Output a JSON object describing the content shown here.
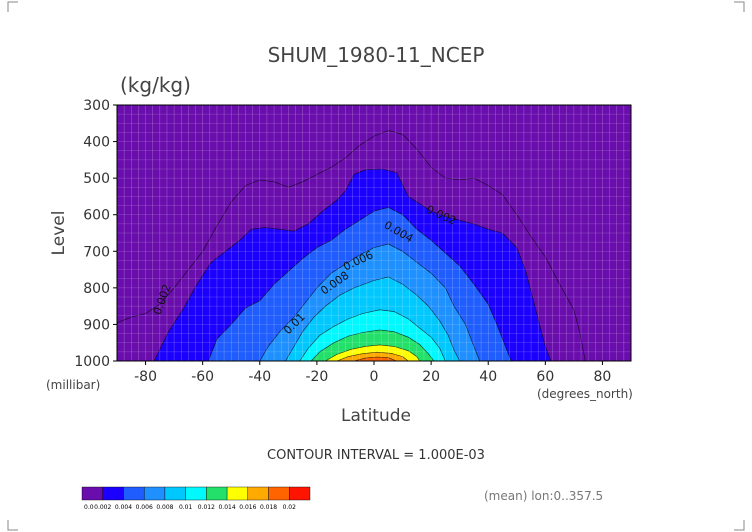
{
  "chart_data": {
    "type": "contour",
    "title": "SHUM_1980-11_NCEP",
    "units": "(kg/kg)",
    "xlabel": "Latitude",
    "ylabel": "Level",
    "x_unit_label": "(degrees_north)",
    "y_unit_label": "(millibar)",
    "xlim": [
      -90,
      90
    ],
    "ylim": [
      1000,
      300
    ],
    "x_ticks": [
      -80,
      -60,
      -40,
      -20,
      0,
      20,
      40,
      60,
      80
    ],
    "y_ticks": [
      300,
      400,
      500,
      600,
      700,
      800,
      900,
      1000
    ],
    "contour_interval_text": "CONTOUR INTERVAL = 1.000E-03",
    "footnote": "(mean) lon:0..357.5",
    "colorbar_labels": [
      "0.0",
      "0.002",
      "0.004",
      "0.006",
      "0.008",
      "0.01",
      "0.012",
      "0.014",
      "0.016",
      "0.018",
      "0.02"
    ],
    "level_colors": [
      "#6a0dad",
      "#1c00ff",
      "#1f5dff",
      "#1e90ff",
      "#00c8ff",
      "#00f8ff",
      "#22e06a",
      "#ffff00",
      "#ffaa00",
      "#ff6400",
      "#ff1400"
    ],
    "contour_labels": [
      "0.002",
      "0.002",
      "0.004",
      "0.006",
      "0.008",
      "0.01"
    ],
    "level_boundaries": [
      {
        "value": 0.001,
        "points": [
          [
            -90,
            1000
          ],
          [
            -90,
            895
          ],
          [
            -85,
            880
          ],
          [
            -80,
            870
          ],
          [
            -75,
            845
          ],
          [
            -70,
            800
          ],
          [
            -65,
            750
          ],
          [
            -60,
            700
          ],
          [
            -55,
            630
          ],
          [
            -50,
            565
          ],
          [
            -45,
            520
          ],
          [
            -40,
            505
          ],
          [
            -35,
            510
          ],
          [
            -30,
            525
          ],
          [
            -25,
            510
          ],
          [
            -20,
            490
          ],
          [
            -15,
            470
          ],
          [
            -10,
            445
          ],
          [
            -5,
            410
          ],
          [
            0,
            385
          ],
          [
            5,
            370
          ],
          [
            10,
            380
          ],
          [
            15,
            420
          ],
          [
            20,
            470
          ],
          [
            25,
            500
          ],
          [
            30,
            505
          ],
          [
            35,
            500
          ],
          [
            40,
            520
          ],
          [
            45,
            545
          ],
          [
            50,
            600
          ],
          [
            55,
            660
          ],
          [
            60,
            715
          ],
          [
            65,
            790
          ],
          [
            70,
            860
          ],
          [
            72,
            920
          ],
          [
            74,
            1000
          ]
        ]
      },
      {
        "value": 0.002,
        "points": [
          [
            -77,
            1000
          ],
          [
            -72,
            920
          ],
          [
            -67,
            860
          ],
          [
            -62,
            790
          ],
          [
            -57,
            730
          ],
          [
            -52,
            700
          ],
          [
            -47,
            670
          ],
          [
            -43,
            640
          ],
          [
            -38,
            635
          ],
          [
            -33,
            640
          ],
          [
            -28,
            645
          ],
          [
            -23,
            625
          ],
          [
            -18,
            590
          ],
          [
            -13,
            560
          ],
          [
            -10,
            535
          ],
          [
            -7,
            490
          ],
          [
            -3,
            477
          ],
          [
            3,
            475
          ],
          [
            8,
            485
          ],
          [
            12,
            550
          ],
          [
            16,
            570
          ],
          [
            20,
            590
          ],
          [
            25,
            605
          ],
          [
            30,
            615
          ],
          [
            35,
            625
          ],
          [
            40,
            640
          ],
          [
            45,
            650
          ],
          [
            50,
            690
          ],
          [
            53,
            750
          ],
          [
            56,
            840
          ],
          [
            58,
            900
          ],
          [
            60,
            960
          ],
          [
            62,
            1000
          ]
        ]
      },
      {
        "value": 0.004,
        "points": [
          [
            -58,
            1000
          ],
          [
            -55,
            940
          ],
          [
            -50,
            900
          ],
          [
            -45,
            855
          ],
          [
            -40,
            835
          ],
          [
            -35,
            790
          ],
          [
            -30,
            755
          ],
          [
            -25,
            720
          ],
          [
            -20,
            690
          ],
          [
            -15,
            670
          ],
          [
            -10,
            640
          ],
          [
            -5,
            615
          ],
          [
            0,
            590
          ],
          [
            5,
            580
          ],
          [
            10,
            600
          ],
          [
            15,
            640
          ],
          [
            20,
            670
          ],
          [
            25,
            705
          ],
          [
            30,
            740
          ],
          [
            35,
            790
          ],
          [
            40,
            845
          ],
          [
            43,
            900
          ],
          [
            46,
            960
          ],
          [
            48,
            1000
          ]
        ]
      },
      {
        "value": 0.006,
        "points": [
          [
            -40,
            1000
          ],
          [
            -37,
            960
          ],
          [
            -33,
            920
          ],
          [
            -28,
            880
          ],
          [
            -24,
            840
          ],
          [
            -20,
            800
          ],
          [
            -15,
            760
          ],
          [
            -10,
            735
          ],
          [
            -5,
            710
          ],
          [
            0,
            690
          ],
          [
            5,
            680
          ],
          [
            10,
            700
          ],
          [
            15,
            730
          ],
          [
            20,
            760
          ],
          [
            25,
            800
          ],
          [
            28,
            850
          ],
          [
            32,
            900
          ],
          [
            35,
            960
          ],
          [
            37,
            1000
          ]
        ]
      },
      {
        "value": 0.008,
        "points": [
          [
            -31,
            1000
          ],
          [
            -28,
            960
          ],
          [
            -25,
            920
          ],
          [
            -21,
            880
          ],
          [
            -17,
            850
          ],
          [
            -12,
            820
          ],
          [
            -7,
            800
          ],
          [
            0,
            780
          ],
          [
            5,
            770
          ],
          [
            10,
            790
          ],
          [
            15,
            820
          ],
          [
            19,
            850
          ],
          [
            23,
            890
          ],
          [
            26,
            930
          ],
          [
            28,
            970
          ],
          [
            30,
            1000
          ]
        ]
      },
      {
        "value": 0.01,
        "points": [
          [
            -26,
            1000
          ],
          [
            -23,
            965
          ],
          [
            -19,
            930
          ],
          [
            -14,
            905
          ],
          [
            -9,
            885
          ],
          [
            -4,
            870
          ],
          [
            2,
            860
          ],
          [
            7,
            865
          ],
          [
            12,
            885
          ],
          [
            16,
            910
          ],
          [
            20,
            935
          ],
          [
            23,
            965
          ],
          [
            25,
            1000
          ]
        ]
      },
      {
        "value": 0.012,
        "points": [
          [
            -22,
            1000
          ],
          [
            -19,
            975
          ],
          [
            -14,
            950
          ],
          [
            -9,
            932
          ],
          [
            -4,
            922
          ],
          [
            2,
            915
          ],
          [
            7,
            920
          ],
          [
            12,
            935
          ],
          [
            16,
            955
          ],
          [
            19,
            980
          ],
          [
            21,
            1000
          ]
        ]
      },
      {
        "value": 0.014,
        "points": [
          [
            -17,
            1000
          ],
          [
            -13,
            982
          ],
          [
            -8,
            968
          ],
          [
            -3,
            960
          ],
          [
            2,
            956
          ],
          [
            7,
            960
          ],
          [
            12,
            972
          ],
          [
            15,
            988
          ],
          [
            16,
            1000
          ]
        ]
      },
      {
        "value": 0.016,
        "points": [
          [
            -13,
            1000
          ],
          [
            -9,
            988
          ],
          [
            -4,
            980
          ],
          [
            1,
            976
          ],
          [
            6,
            979
          ],
          [
            10,
            988
          ],
          [
            12,
            1000
          ]
        ]
      },
      {
        "value": 0.018,
        "points": [
          [
            -7,
            1000
          ],
          [
            -3,
            992
          ],
          [
            1,
            989
          ],
          [
            5,
            991
          ],
          [
            8,
            1000
          ]
        ]
      }
    ]
  }
}
